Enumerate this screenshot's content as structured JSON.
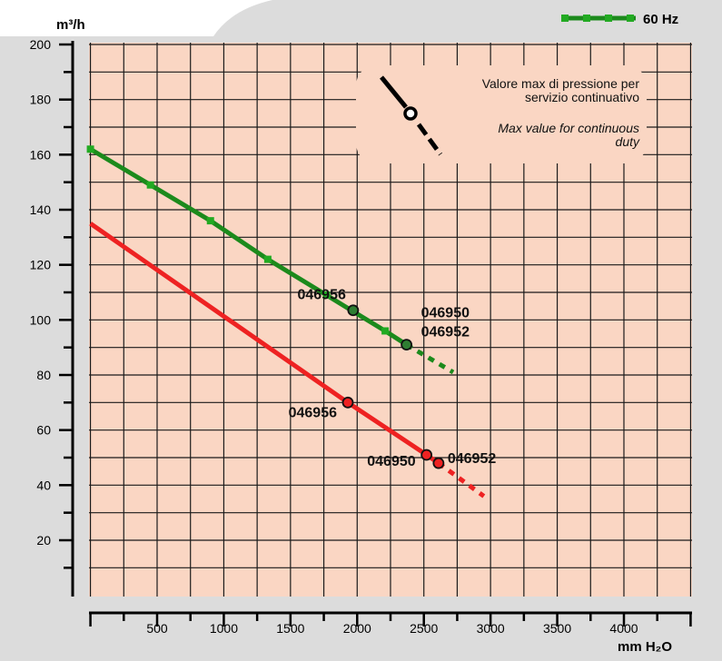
{
  "chart_data": {
    "type": "line",
    "xlabel": "mm H₂O",
    "ylabel": "m³/h",
    "xlim": [
      0,
      4500
    ],
    "ylim": [
      0,
      200
    ],
    "x_ticks": [
      500,
      1000,
      1500,
      2000,
      2500,
      3000,
      3500,
      4000
    ],
    "y_ticks": [
      20,
      40,
      60,
      80,
      100,
      120,
      140,
      160,
      180,
      200
    ],
    "grid": true,
    "legend_position": "top-right",
    "legend_label": "60 Hz",
    "series": [
      {
        "name": "60 Hz",
        "color": "#1c8a1c",
        "marker": "square",
        "x": [
          0,
          450,
          900,
          1330,
          1770,
          2210
        ],
        "y": [
          162,
          149,
          136,
          122,
          109,
          96
        ],
        "solid_end": [
          2370,
          91
        ],
        "dashed_end": [
          2720,
          81
        ]
      },
      {
        "color": "#ee2222",
        "x": [
          0,
          1930,
          2520,
          2610
        ],
        "y": [
          135,
          70,
          51,
          48
        ],
        "solid_end": [
          2610,
          48
        ],
        "dashed_end": [
          2950,
          36
        ]
      }
    ],
    "points": [
      {
        "label": "046956",
        "x": 1970,
        "y": 103.5,
        "color": "#2e7d32"
      },
      {
        "label": "046950\n046952",
        "x": 2370,
        "y": 91,
        "color": "#2e7d32"
      },
      {
        "label": "046956",
        "x": 1930,
        "y": 70,
        "color": "#ee2222"
      },
      {
        "label": "046950",
        "x": 2520,
        "y": 51,
        "color": "#ee2222"
      },
      {
        "label": "046952",
        "x": 2610,
        "y": 48,
        "color": "#ee2222"
      }
    ],
    "annotation": {
      "line1": "Valore max di pressione per",
      "line2": "servizio continuativo",
      "line3": "Max value for continuous",
      "line4": "duty"
    }
  },
  "colors": {
    "background": "#dcdcdc",
    "plot_fill": "#fad6c3",
    "grid": "#1a1a1a",
    "green": "#1c8a1c",
    "red": "#ee2222"
  }
}
